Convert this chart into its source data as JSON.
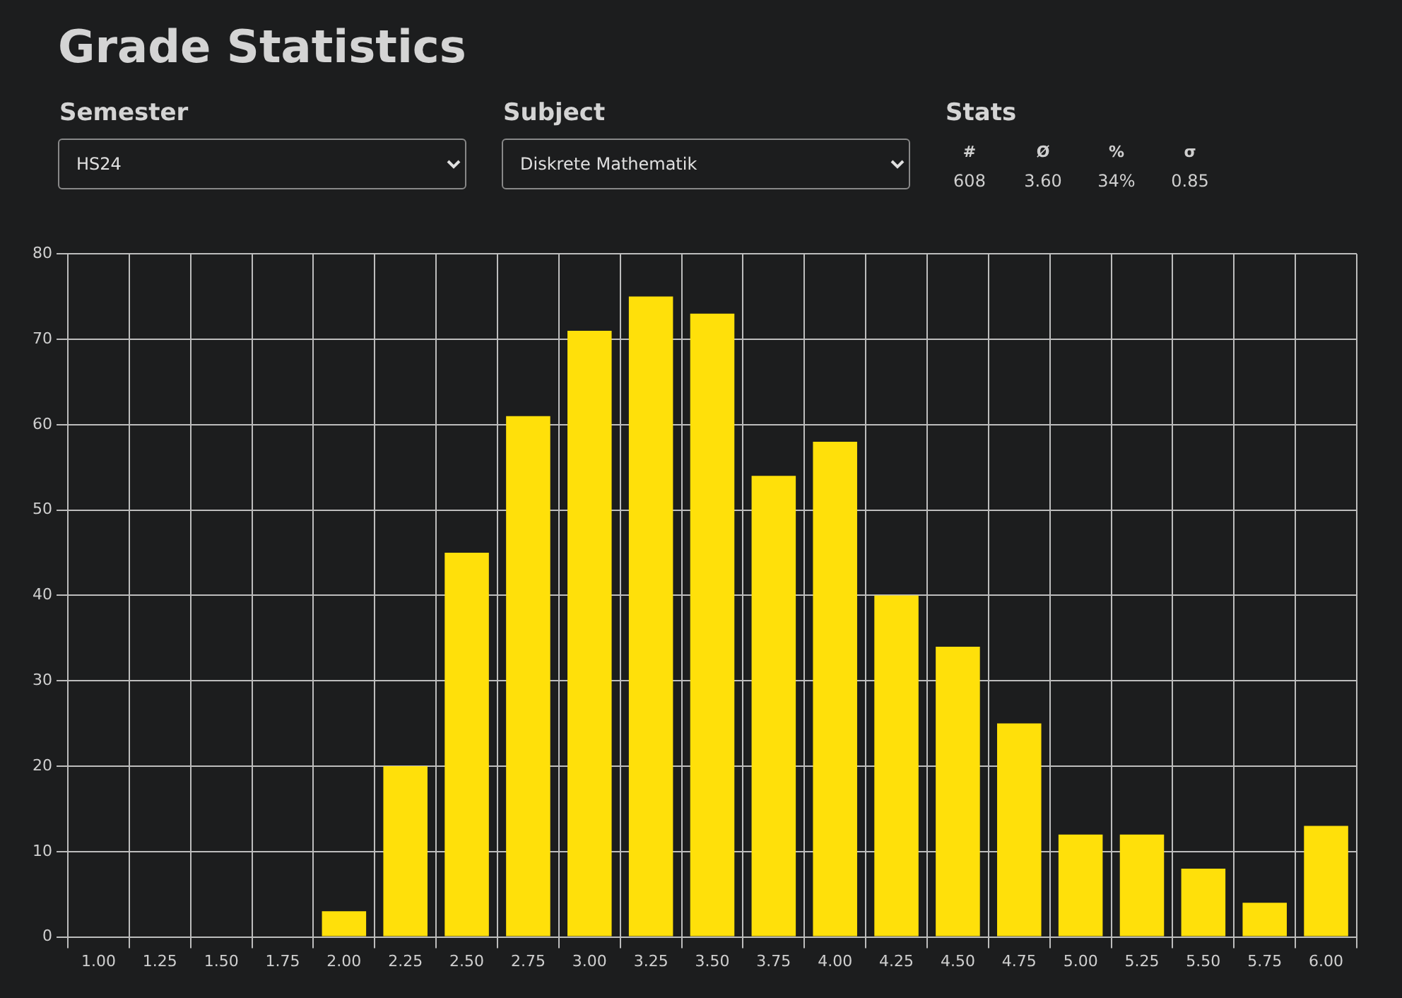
{
  "chart_data": {
    "type": "bar",
    "title": "Grade Statistics",
    "categories": [
      "1.00",
      "1.25",
      "1.50",
      "1.75",
      "2.00",
      "2.25",
      "2.50",
      "2.75",
      "3.00",
      "3.25",
      "3.50",
      "3.75",
      "4.00",
      "4.25",
      "4.50",
      "4.75",
      "5.00",
      "5.25",
      "5.50",
      "5.75",
      "6.00"
    ],
    "values": [
      0,
      0,
      0,
      0,
      3,
      20,
      45,
      61,
      71,
      75,
      73,
      54,
      58,
      40,
      34,
      25,
      12,
      12,
      8,
      4,
      13
    ],
    "color": "#ffe00a",
    "ylim": [
      0,
      80
    ],
    "yticks": [
      0,
      10,
      20,
      30,
      40,
      50,
      60,
      70,
      80
    ],
    "grid": true,
    "legend": false,
    "annotations": [
      "Semester",
      "HS24",
      "Subject",
      "Diskrete Mathematik",
      "Stats",
      "#",
      "Ø",
      "%",
      "σ",
      "608",
      "3.60",
      "34%",
      "0.85"
    ]
  }
}
